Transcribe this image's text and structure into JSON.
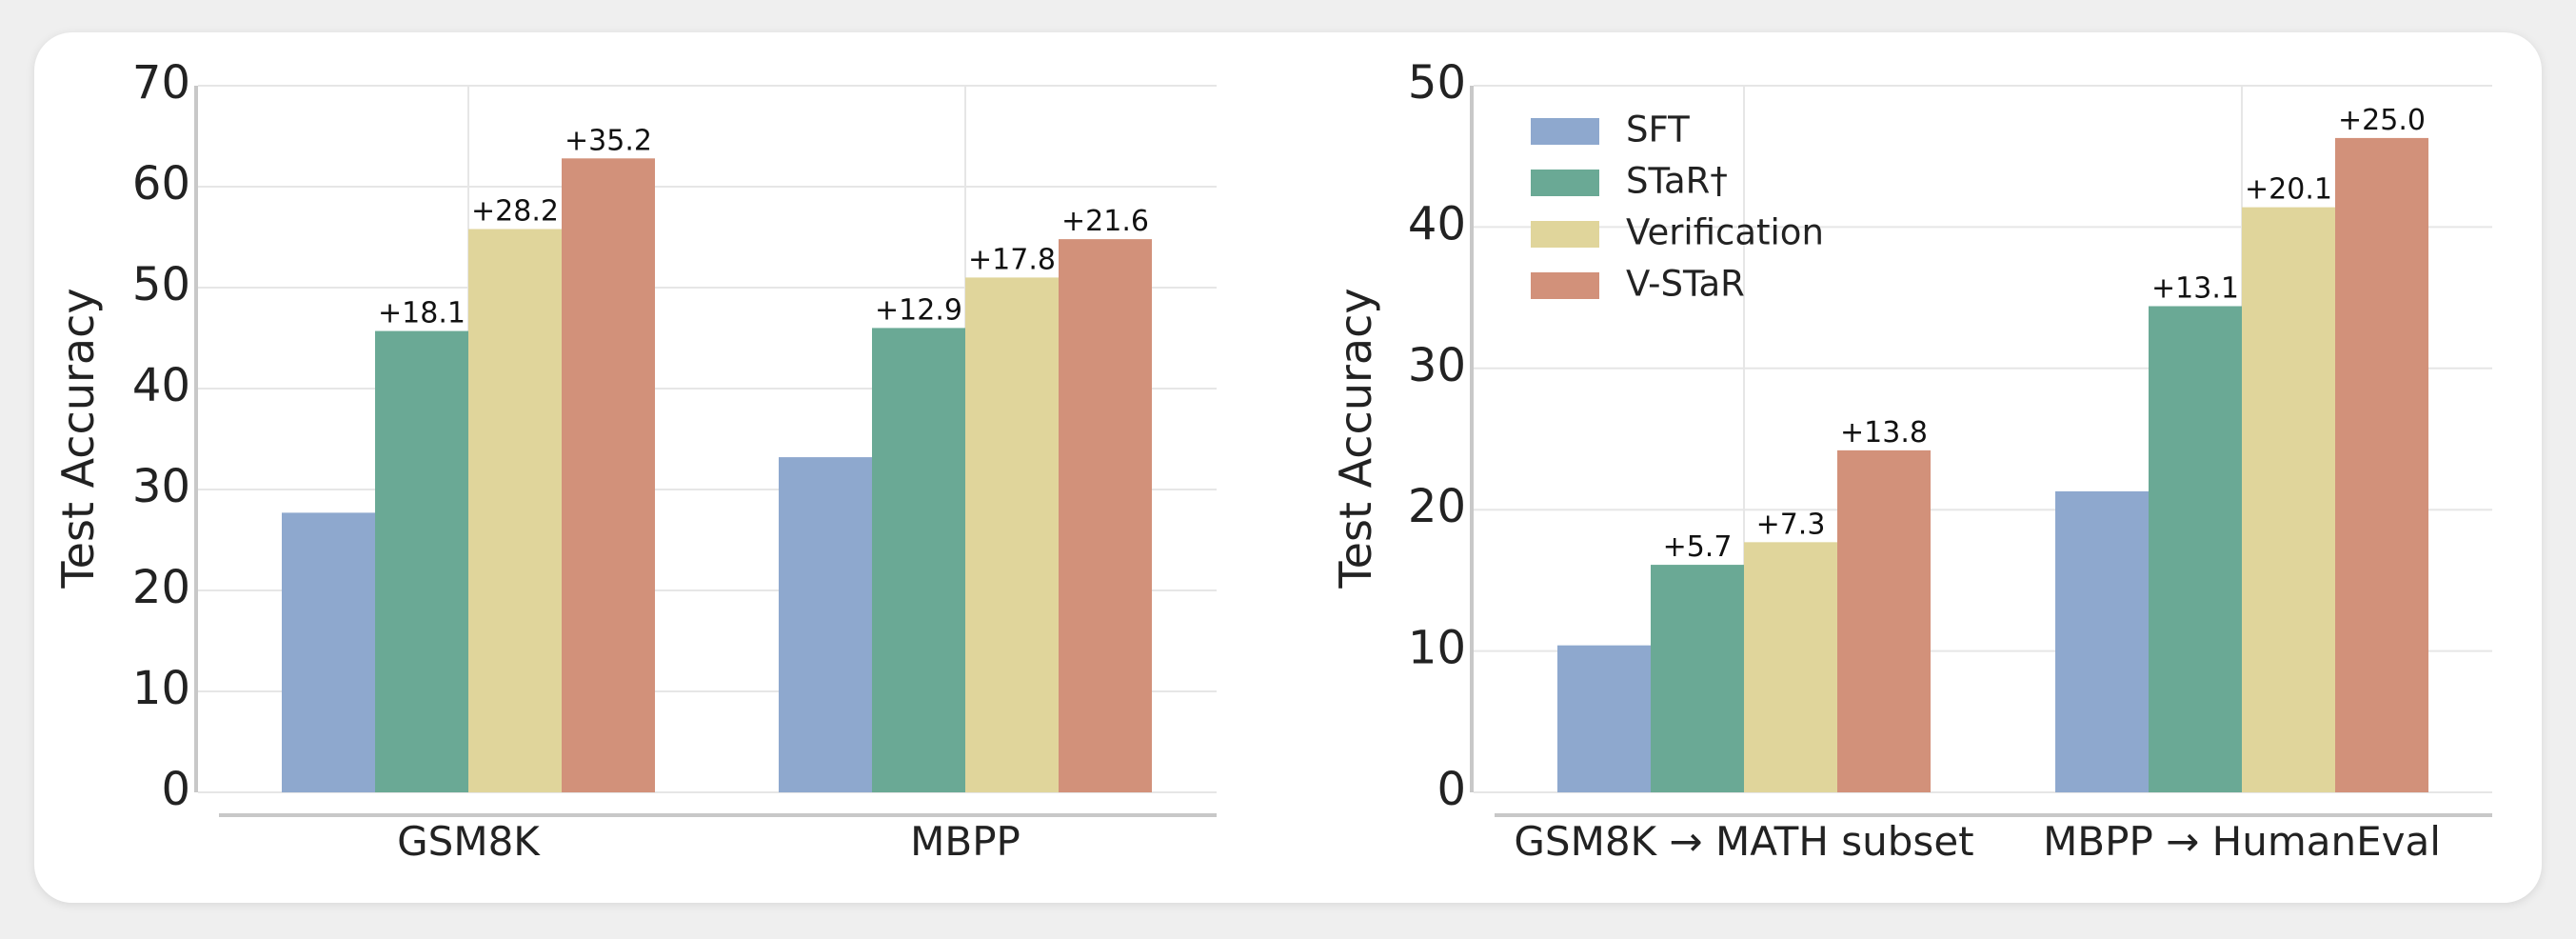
{
  "chart_data": [
    {
      "type": "bar",
      "title": "",
      "xlabel": "",
      "ylabel": "Test Accuracy",
      "ylim": [
        0,
        70
      ],
      "yticks": [
        0,
        10,
        20,
        30,
        40,
        50,
        60,
        70
      ],
      "grid": true,
      "categories": [
        "GSM8K",
        "MBPP"
      ],
      "series": [
        {
          "name": "SFT",
          "color": "#8ea8ce",
          "values": [
            27.7,
            33.2
          ],
          "labels": [
            "",
            ""
          ]
        },
        {
          "name": "STaR†",
          "color": "#6aa995",
          "values": [
            45.7,
            46.0
          ],
          "labels": [
            "+18.1",
            "+12.9"
          ]
        },
        {
          "name": "Verification",
          "color": "#e0d59b",
          "values": [
            55.8,
            51.0
          ],
          "labels": [
            "+28.2",
            "+17.8"
          ]
        },
        {
          "name": "V-STaR",
          "color": "#d2917a",
          "values": [
            62.8,
            54.8
          ],
          "labels": [
            "+35.2",
            "+21.6"
          ]
        }
      ]
    },
    {
      "type": "bar",
      "title": "",
      "xlabel": "",
      "ylabel": "Test Accuracy",
      "ylim": [
        0,
        50
      ],
      "yticks": [
        0,
        10,
        20,
        30,
        40,
        50
      ],
      "grid": true,
      "legend": "top-left",
      "categories": [
        "GSM8K → MATH subset",
        "MBPP → HumanEval"
      ],
      "series": [
        {
          "name": "SFT",
          "color": "#8ea8ce",
          "values": [
            10.4,
            21.3
          ],
          "labels": [
            "",
            ""
          ]
        },
        {
          "name": "STaR†",
          "color": "#6aa995",
          "values": [
            16.1,
            34.4
          ],
          "labels": [
            "+5.7",
            "+13.1"
          ]
        },
        {
          "name": "Verification",
          "color": "#e0d59b",
          "values": [
            17.7,
            41.4
          ],
          "labels": [
            "+7.3",
            "+20.1"
          ]
        },
        {
          "name": "V-STaR",
          "color": "#d2917a",
          "values": [
            24.2,
            46.3
          ],
          "labels": [
            "+13.8",
            "+25.0"
          ]
        }
      ]
    }
  ]
}
